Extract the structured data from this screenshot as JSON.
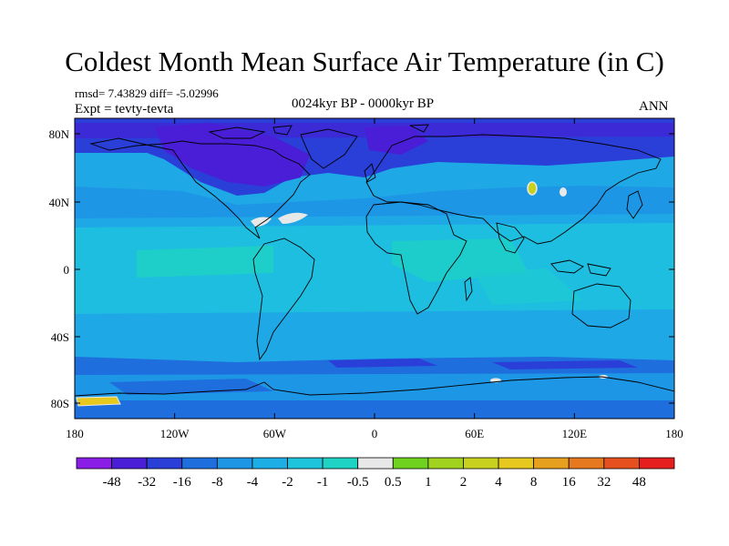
{
  "title": "Coldest Month Mean Surface Air Temperature (in C)",
  "stats": "rmsd= 7.43829 diff= -5.02996",
  "experiment": "Expt = tevty-tevta",
  "period": "0024kyr BP - 0000kyr BP",
  "season": "ANN",
  "lon_ticks": [
    "180",
    "120W",
    "60W",
    "0",
    "60E",
    "120E",
    "180"
  ],
  "lat_ticks": [
    "80N",
    "40N",
    "0",
    "40S",
    "80S"
  ],
  "colorbar": {
    "colors": [
      "#8a1ee6",
      "#4a1ed6",
      "#2a3ed8",
      "#1e6ede",
      "#1e96e6",
      "#1eaee6",
      "#1ec4dc",
      "#1ed2c4",
      "#e8e8e8",
      "#6ed21e",
      "#a0d21e",
      "#c8d21e",
      "#e6c81e",
      "#e6a01e",
      "#e6781e",
      "#e6501e",
      "#e61e1e"
    ],
    "labels": [
      "-48",
      "-32",
      "-16",
      "-8",
      "-4",
      "-2",
      "-1",
      "-0.5",
      "0.5",
      "1",
      "2",
      "4",
      "8",
      "16",
      "32",
      "48"
    ]
  }
}
